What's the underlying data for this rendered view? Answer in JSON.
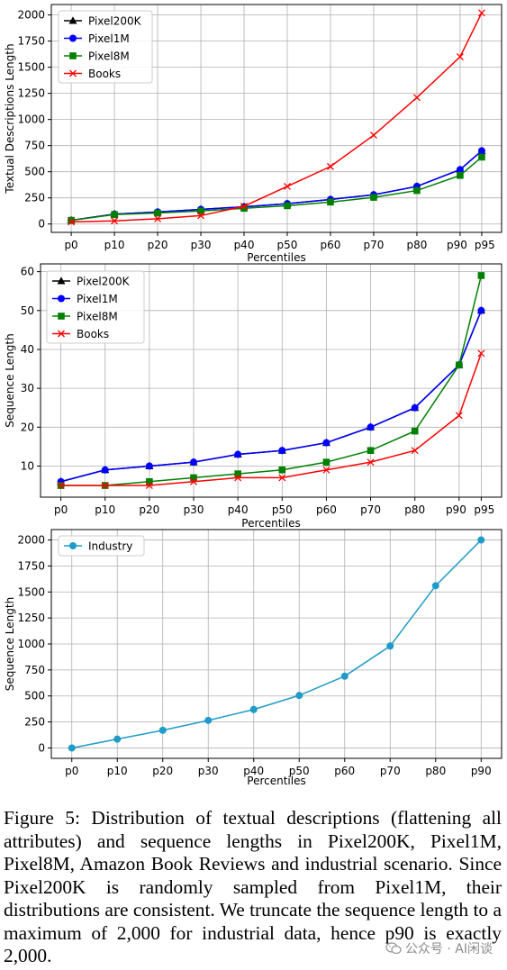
{
  "chart_data": [
    {
      "type": "line",
      "ylabel": "Textual Descriptions Length",
      "xlabel": "Percentiles",
      "categories": [
        "p0",
        "p10",
        "p20",
        "p30",
        "p40",
        "p50",
        "p60",
        "p70",
        "p80",
        "p90",
        "p95"
      ],
      "x_positions": [
        0,
        10,
        20,
        30,
        40,
        50,
        60,
        70,
        80,
        90,
        95
      ],
      "ylim": [
        -80,
        2100
      ],
      "yticks": [
        0,
        250,
        500,
        750,
        1000,
        1250,
        1500,
        1750,
        2000
      ],
      "grid": true,
      "legend": "top-left",
      "series": [
        {
          "name": "Pixel200K",
          "color": "#000000",
          "marker": "triangle",
          "values": [
            35,
            95,
            115,
            140,
            165,
            195,
            235,
            280,
            360,
            520,
            700
          ]
        },
        {
          "name": "Pixel1M",
          "color": "#0000ff",
          "marker": "circle",
          "values": [
            35,
            95,
            115,
            140,
            165,
            195,
            235,
            280,
            360,
            520,
            700
          ]
        },
        {
          "name": "Pixel8M",
          "color": "#008000",
          "marker": "square",
          "values": [
            35,
            90,
            105,
            125,
            150,
            175,
            210,
            255,
            320,
            465,
            640
          ]
        },
        {
          "name": "Books",
          "color": "#ff0000",
          "marker": "x",
          "values": [
            20,
            30,
            50,
            80,
            170,
            360,
            550,
            850,
            1210,
            1600,
            2020
          ]
        }
      ]
    },
    {
      "type": "line",
      "ylabel": "Sequence Length",
      "xlabel": "Percentiles",
      "categories": [
        "p0",
        "p10",
        "p20",
        "p30",
        "p40",
        "p50",
        "p60",
        "p70",
        "p80",
        "p90",
        "p95"
      ],
      "x_positions": [
        0,
        10,
        20,
        30,
        40,
        50,
        60,
        70,
        80,
        90,
        95
      ],
      "ylim": [
        2,
        62
      ],
      "yticks": [
        10,
        20,
        30,
        40,
        50,
        60
      ],
      "grid": true,
      "legend": "top-left",
      "series": [
        {
          "name": "Pixel200K",
          "color": "#000000",
          "marker": "triangle",
          "values": [
            6,
            9,
            10,
            11,
            13,
            14,
            16,
            20,
            25,
            36,
            50
          ]
        },
        {
          "name": "Pixel1M",
          "color": "#0000ff",
          "marker": "circle",
          "values": [
            6,
            9,
            10,
            11,
            13,
            14,
            16,
            20,
            25,
            36,
            50
          ]
        },
        {
          "name": "Pixel8M",
          "color": "#008000",
          "marker": "square",
          "values": [
            5,
            5,
            6,
            7,
            8,
            9,
            11,
            14,
            19,
            36,
            59
          ]
        },
        {
          "name": "Books",
          "color": "#ff0000",
          "marker": "x",
          "values": [
            5,
            5,
            5,
            6,
            7,
            7,
            9,
            11,
            14,
            23,
            39
          ]
        }
      ]
    },
    {
      "type": "line",
      "ylabel": "Sequence Length",
      "xlabel": "Percentiles",
      "categories": [
        "p0",
        "p10",
        "p20",
        "p30",
        "p40",
        "p50",
        "p60",
        "p70",
        "p80",
        "p90"
      ],
      "x_positions": [
        0,
        10,
        20,
        30,
        40,
        50,
        60,
        70,
        80,
        90
      ],
      "ylim": [
        -100,
        2100
      ],
      "yticks": [
        0,
        250,
        500,
        750,
        1000,
        1250,
        1500,
        1750,
        2000
      ],
      "grid": true,
      "legend": "top-left",
      "series": [
        {
          "name": "Industry",
          "color": "#1f9bc9",
          "marker": "circle",
          "values": [
            0,
            85,
            170,
            265,
            370,
            505,
            690,
            980,
            1560,
            2000
          ]
        }
      ]
    }
  ],
  "caption": "Figure 5: Distribution of textual descriptions (flattening all attributes) and sequence lengths in Pixel200K, Pixel1M, Pixel8M, Amazon Book Reviews and industrial scenario. Since Pixel200K is randomly sampled from Pixel1M, their distributions are consistent. We truncate the sequence length to a maximum of 2,000 for industrial data, hence p90 is exactly 2,000.",
  "watermark": {
    "text": "公众号 · AI闲谈",
    "icon": "wechat-icon"
  }
}
